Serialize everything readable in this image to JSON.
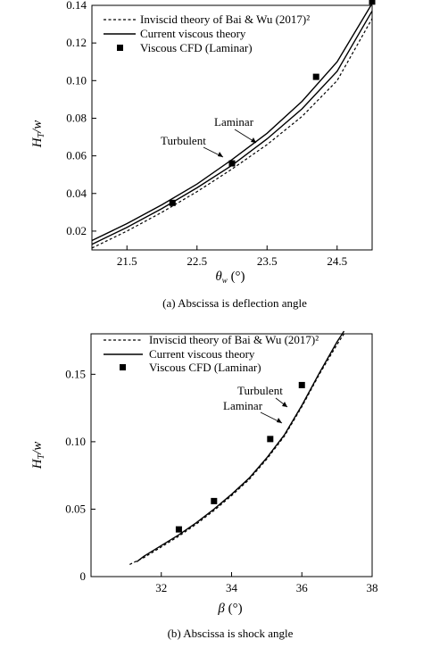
{
  "chart_data": [
    {
      "type": "line",
      "caption": "(a) Abscissa is deflection angle",
      "xlabel": "θw (°)",
      "ylabel": "HT/w",
      "xlim": [
        21,
        25
      ],
      "ylim": [
        0.01,
        0.14
      ],
      "xticks": [
        "21.5",
        "22.5",
        "23.5",
        "24.5"
      ],
      "yticks": [
        "0.02",
        "0.04",
        "0.06",
        "0.08",
        "0.10",
        "0.12",
        "0.14"
      ],
      "grid": false,
      "legend": "top-left",
      "legend_entries": [
        "Inviscid theory of Bai & Wu (2017)²",
        "Current viscous theory",
        "Viscous CFD (Laminar)"
      ],
      "annotations": [
        "Laminar",
        "Turbulent"
      ],
      "series": [
        {
          "name": "Inviscid theory of Bai & Wu (2017)²",
          "style": "dashed",
          "x": [
            21.0,
            21.5,
            22.0,
            22.5,
            23.0,
            23.5,
            24.0,
            24.5,
            25.0
          ],
          "y": [
            0.011,
            0.02,
            0.03,
            0.041,
            0.053,
            0.066,
            0.081,
            0.1,
            0.133
          ]
        },
        {
          "name": "Current viscous theory (Laminar)",
          "style": "solid",
          "x": [
            21.0,
            21.5,
            22.0,
            22.5,
            23.0,
            23.5,
            24.0,
            24.5,
            25.0
          ],
          "y": [
            0.013,
            0.022,
            0.032,
            0.043,
            0.055,
            0.069,
            0.085,
            0.105,
            0.137
          ]
        },
        {
          "name": "Current viscous theory (Turbulent)",
          "style": "solid",
          "x": [
            21.0,
            21.5,
            22.0,
            22.5,
            23.0,
            23.5,
            24.0,
            24.5,
            25.0
          ],
          "y": [
            0.015,
            0.024,
            0.034,
            0.045,
            0.058,
            0.072,
            0.089,
            0.11,
            0.141
          ]
        },
        {
          "name": "Viscous CFD (Laminar)",
          "style": "markers",
          "x": [
            22.15,
            23.0,
            24.2,
            25.0
          ],
          "y": [
            0.035,
            0.056,
            0.102,
            0.142
          ]
        }
      ]
    },
    {
      "type": "line",
      "caption": "(b) Abscissa is shock angle",
      "xlabel": "β (°)",
      "ylabel": "HT/w",
      "xlim": [
        30,
        38
      ],
      "ylim": [
        0,
        0.18
      ],
      "xticks": [
        "32",
        "34",
        "36",
        "38"
      ],
      "yticks": [
        "0",
        "0.05",
        "0.10",
        "0.15"
      ],
      "grid": false,
      "legend": "top-left",
      "legend_entries": [
        "Inviscid theory of Bai & Wu (2017)²",
        "Current viscous theory",
        "Viscous CFD (Laminar)"
      ],
      "annotations": [
        "Turbulent",
        "Laminar"
      ],
      "series": [
        {
          "name": "Inviscid theory of Bai & Wu (2017)²",
          "style": "dashed",
          "x": [
            31.1,
            31.5,
            32,
            32.5,
            33,
            33.5,
            34,
            34.5,
            35,
            35.5,
            36,
            36.5,
            37,
            37.2
          ],
          "y": [
            0.009,
            0.014,
            0.022,
            0.03,
            0.039,
            0.049,
            0.06,
            0.072,
            0.087,
            0.104,
            0.126,
            0.15,
            0.172,
            0.18
          ]
        },
        {
          "name": "Current viscous theory",
          "style": "solid",
          "x": [
            31.3,
            31.5,
            32,
            32.5,
            33,
            33.5,
            34,
            34.5,
            35,
            35.5,
            36,
            36.5,
            37,
            37.2
          ],
          "y": [
            0.011,
            0.015,
            0.023,
            0.031,
            0.04,
            0.05,
            0.061,
            0.073,
            0.088,
            0.105,
            0.127,
            0.151,
            0.174,
            0.182
          ]
        },
        {
          "name": "Viscous CFD (Laminar)",
          "style": "markers",
          "x": [
            32.5,
            33.5,
            35.1,
            36.0
          ],
          "y": [
            0.035,
            0.056,
            0.102,
            0.142
          ]
        }
      ]
    }
  ]
}
